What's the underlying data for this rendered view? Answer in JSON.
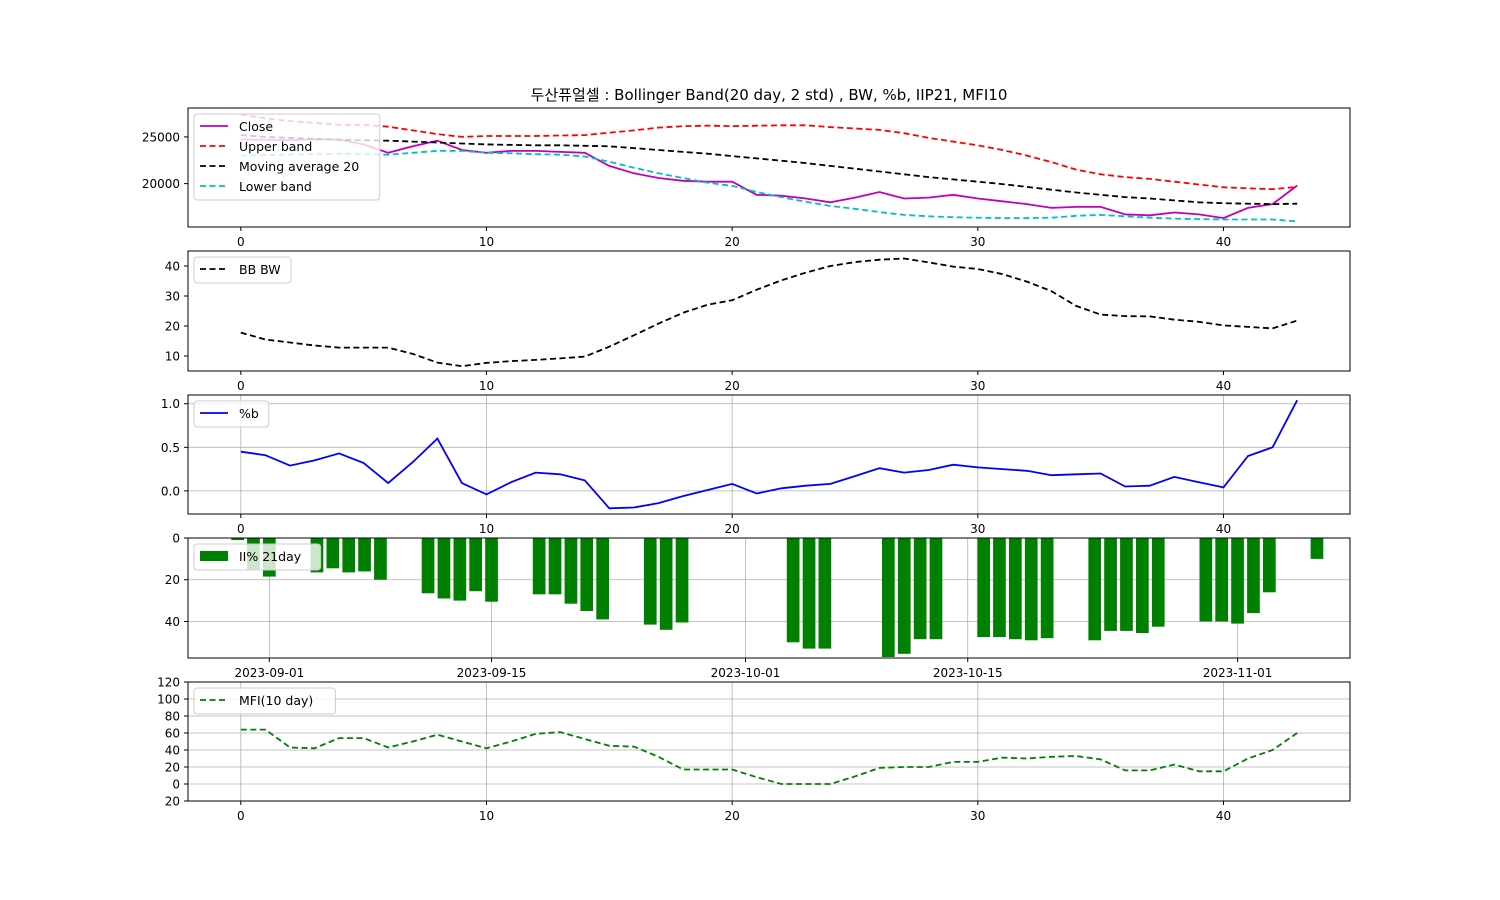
{
  "title": "두산퓨얼셀 : Bollinger Band(20 day, 2 std) , BW, %b, IIP21, MFI10",
  "colors": {
    "close": "#bf00bf",
    "upper": "#ff0000",
    "ma": "#000000",
    "lower": "#00bfbf",
    "bw": "#000000",
    "pb": "#0000ff",
    "ii": "#008000",
    "mfi": "#008000",
    "grid": "#b0b0b0"
  },
  "chart_data": [
    {
      "type": "line",
      "panel": "price",
      "legend_position": "upper-left",
      "grid": false,
      "x": [
        0,
        1,
        2,
        3,
        4,
        5,
        6,
        7,
        8,
        9,
        10,
        11,
        12,
        13,
        14,
        15,
        16,
        17,
        18,
        19,
        20,
        21,
        22,
        23,
        24,
        25,
        26,
        27,
        28,
        29,
        30,
        31,
        32,
        33,
        34,
        35,
        36,
        37,
        38,
        39,
        40,
        41,
        42,
        43
      ],
      "xticks": [
        0,
        10,
        20,
        30,
        40
      ],
      "xlim": [
        -2.15,
        45.15
      ],
      "ylim": [
        15350,
        28100
      ],
      "yticks": [
        20000,
        25000
      ],
      "series": [
        {
          "name": "Close",
          "key": "close",
          "dash": "solid",
          "values": [
            24700,
            24700,
            24650,
            24750,
            24700,
            24200,
            23300,
            24000,
            24600,
            23600,
            23300,
            23500,
            23500,
            23400,
            23300,
            21900,
            21100,
            20600,
            20300,
            20200,
            20200,
            18800,
            18700,
            18400,
            18000,
            18500,
            19100,
            18400,
            18500,
            18800,
            18400,
            18100,
            17800,
            17400,
            17500,
            17500,
            16700,
            16600,
            16900,
            16700,
            16300,
            17400,
            17800,
            19800
          ]
        },
        {
          "name": "Upper band",
          "key": "upper",
          "dash": "dashed",
          "values": [
            27400,
            27000,
            26700,
            26500,
            26300,
            26300,
            26100,
            25700,
            25300,
            25000,
            25100,
            25100,
            25100,
            25150,
            25200,
            25450,
            25700,
            26000,
            26150,
            26200,
            26150,
            26200,
            26250,
            26250,
            26050,
            25900,
            25750,
            25400,
            24900,
            24500,
            24100,
            23600,
            23000,
            22300,
            21500,
            21000,
            20700,
            20500,
            20200,
            19900,
            19600,
            19500,
            19400,
            19650
          ]
        },
        {
          "name": "Moving average 20",
          "key": "ma",
          "dash": "dashed",
          "values": [
            25200,
            25000,
            24900,
            24800,
            24700,
            24650,
            24600,
            24500,
            24400,
            24300,
            24200,
            24150,
            24100,
            24100,
            24050,
            24000,
            23800,
            23600,
            23400,
            23200,
            22950,
            22700,
            22450,
            22200,
            21900,
            21600,
            21300,
            21000,
            20700,
            20450,
            20200,
            19950,
            19650,
            19350,
            19050,
            18800,
            18550,
            18400,
            18200,
            18000,
            17900,
            17850,
            17800,
            17850
          ]
        },
        {
          "name": "Lower band",
          "key": "lower",
          "dash": "dashed",
          "values": [
            23000,
            23050,
            23100,
            23150,
            23200,
            23150,
            23100,
            23300,
            23500,
            23500,
            23300,
            23250,
            23150,
            23100,
            22900,
            22350,
            21700,
            21100,
            20600,
            20100,
            19750,
            19100,
            18550,
            18050,
            17600,
            17300,
            16950,
            16650,
            16500,
            16400,
            16350,
            16300,
            16300,
            16350,
            16550,
            16650,
            16500,
            16350,
            16250,
            16200,
            16150,
            16150,
            16150,
            15950
          ]
        }
      ]
    },
    {
      "type": "line",
      "panel": "bw",
      "legend_position": "upper-left",
      "grid": false,
      "x": [
        0,
        1,
        2,
        3,
        4,
        5,
        6,
        7,
        8,
        9,
        10,
        11,
        12,
        13,
        14,
        15,
        16,
        17,
        18,
        19,
        20,
        21,
        22,
        23,
        24,
        25,
        26,
        27,
        28,
        29,
        30,
        31,
        32,
        33,
        34,
        35,
        36,
        37,
        38,
        39,
        40,
        41,
        42,
        43
      ],
      "xticks": [
        0,
        10,
        20,
        30,
        40
      ],
      "xlim": [
        -2.15,
        45.15
      ],
      "ylim": [
        5,
        45
      ],
      "yticks": [
        10,
        20,
        30,
        40
      ],
      "series": [
        {
          "name": "BB BW",
          "key": "bw",
          "dash": "dashed",
          "values": [
            17.8,
            15.5,
            14.5,
            13.5,
            12.8,
            12.8,
            12.8,
            10.7,
            7.8,
            6.6,
            7.7,
            8.3,
            8.7,
            9.2,
            9.8,
            13.1,
            16.9,
            20.8,
            24.4,
            27.1,
            28.6,
            32.1,
            35.2,
            37.8,
            40.0,
            41.3,
            42.1,
            42.5,
            41.2,
            39.8,
            39.0,
            37.3,
            34.8,
            31.6,
            26.7,
            23.8,
            23.3,
            23.2,
            22.1,
            21.4,
            20.2,
            19.7,
            19.2,
            21.8
          ]
        }
      ]
    },
    {
      "type": "line",
      "panel": "pb",
      "legend_position": "upper-left",
      "grid": true,
      "x": [
        0,
        1,
        2,
        3,
        4,
        5,
        6,
        7,
        8,
        9,
        10,
        11,
        12,
        13,
        14,
        15,
        16,
        17,
        18,
        19,
        20,
        21,
        22,
        23,
        24,
        25,
        26,
        27,
        28,
        29,
        30,
        31,
        32,
        33,
        34,
        35,
        36,
        37,
        38,
        39,
        40,
        41,
        42,
        43
      ],
      "xticks": [
        0,
        10,
        20,
        30,
        40
      ],
      "xlim": [
        -2.15,
        45.15
      ],
      "ylim": [
        -0.265,
        1.1
      ],
      "yticks": [
        0.0,
        0.5,
        1.0
      ],
      "ytick_labels": [
        "0.0",
        "0.5",
        "1.0"
      ],
      "series": [
        {
          "name": "%b",
          "key": "pb",
          "dash": "solid",
          "values": [
            0.45,
            0.41,
            0.29,
            0.35,
            0.43,
            0.32,
            0.09,
            0.33,
            0.6,
            0.09,
            -0.04,
            0.1,
            0.21,
            0.19,
            0.12,
            -0.2,
            -0.19,
            -0.14,
            -0.06,
            0.01,
            0.08,
            -0.03,
            0.03,
            0.06,
            0.08,
            0.17,
            0.26,
            0.21,
            0.24,
            0.3,
            0.27,
            0.25,
            0.23,
            0.18,
            0.19,
            0.2,
            0.05,
            0.06,
            0.16,
            0.1,
            0.04,
            0.4,
            0.5,
            1.04
          ]
        }
      ]
    },
    {
      "type": "bar",
      "panel": "ii",
      "legend_position": "upper-left",
      "grid": true,
      "xticks_dates": [
        "2023-09-01",
        "2023-09-15",
        "2023-10-01",
        "2023-10-15",
        "2023-11-01"
      ],
      "xlim": [
        "2023-08-26 21:00",
        "2023-11-08 02:00"
      ],
      "ylim": [
        -57.5,
        0
      ],
      "yticks": [
        0,
        -20,
        -40
      ],
      "ytick_labels": [
        "0",
        "\u001f20",
        "\u001f40"
      ],
      "series": [
        {
          "name": "II% 21day",
          "key": "ii",
          "dates": [
            "2023-08-30",
            "2023-08-31",
            "2023-09-01",
            "2023-09-04",
            "2023-09-05",
            "2023-09-06",
            "2023-09-07",
            "2023-09-08",
            "2023-09-11",
            "2023-09-12",
            "2023-09-13",
            "2023-09-14",
            "2023-09-15",
            "2023-09-18",
            "2023-09-19",
            "2023-09-20",
            "2023-09-21",
            "2023-09-22",
            "2023-09-25",
            "2023-09-26",
            "2023-09-27",
            "2023-10-04",
            "2023-10-05",
            "2023-10-06",
            "2023-10-10",
            "2023-10-11",
            "2023-10-12",
            "2023-10-13",
            "2023-10-16",
            "2023-10-17",
            "2023-10-18",
            "2023-10-19",
            "2023-10-20",
            "2023-10-23",
            "2023-10-24",
            "2023-10-25",
            "2023-10-26",
            "2023-10-27",
            "2023-10-30",
            "2023-10-31",
            "2023-11-01",
            "2023-11-02",
            "2023-11-03",
            "2023-11-06"
          ],
          "values": [
            -1,
            -15,
            -18.5,
            -16.5,
            -14.5,
            -16.5,
            -16,
            -20,
            -26.5,
            -29,
            -30,
            -25.5,
            -30.5,
            -27,
            -27,
            -31.5,
            -35,
            -39,
            -41.5,
            -44,
            -40.5,
            -50,
            -53,
            -53,
            -57,
            -55.5,
            -48.5,
            -48.5,
            -47.5,
            -47.5,
            -48.5,
            -49,
            -48,
            -49,
            -44.5,
            -44.5,
            -45.5,
            -42.5,
            -40,
            -40,
            -41,
            -36,
            -26,
            -10
          ]
        }
      ]
    },
    {
      "type": "line",
      "panel": "mfi",
      "legend_position": "upper-left",
      "grid": true,
      "x": [
        0,
        1,
        2,
        3,
        4,
        5,
        6,
        7,
        8,
        9,
        10,
        11,
        12,
        13,
        14,
        15,
        16,
        17,
        18,
        19,
        20,
        21,
        22,
        23,
        24,
        25,
        26,
        27,
        28,
        29,
        30,
        31,
        32,
        33,
        34,
        35,
        36,
        37,
        38,
        39,
        40,
        41,
        42,
        43
      ],
      "xticks": [
        0,
        10,
        20,
        30,
        40
      ],
      "xlim": [
        -2.15,
        45.15
      ],
      "ylim": [
        -20,
        120
      ],
      "yticks": [
        -20,
        0,
        20,
        40,
        60,
        80,
        100,
        120
      ],
      "ytick_labels": [
        "\u001f20",
        "0",
        "20",
        "40",
        "60",
        "80",
        "100",
        "120"
      ],
      "series": [
        {
          "name": "MFI(10 day)",
          "key": "mfi",
          "dash": "dashed",
          "values": [
            64,
            64,
            43,
            42,
            54,
            54,
            43,
            50,
            58,
            50,
            42,
            50,
            59,
            61,
            53,
            45,
            44,
            32,
            17,
            17,
            17,
            8,
            0,
            0,
            0,
            9,
            19,
            20,
            20,
            26,
            26,
            31,
            30,
            32,
            33,
            29,
            16,
            16,
            23,
            15,
            15,
            30,
            40,
            60
          ]
        }
      ]
    }
  ]
}
